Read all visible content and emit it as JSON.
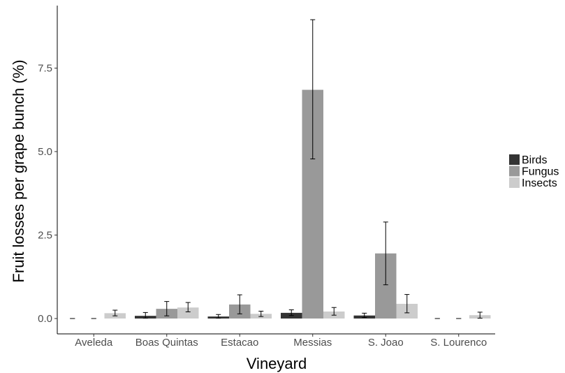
{
  "chart_data": {
    "type": "bar",
    "xlabel": "Vineyard",
    "ylabel": "Fruit losses per grape bunch (%)",
    "categories": [
      "Aveleda",
      "Boas Quintas",
      "Estacao",
      "Messias",
      "S. Joao",
      "S. Lourenco"
    ],
    "ylim": [
      -0.4,
      9.3
    ],
    "yticks": [
      0.0,
      2.5,
      5.0,
      7.5
    ],
    "ytick_labels": [
      "0.0",
      "2.5",
      "5.0",
      "7.5"
    ],
    "grid": false,
    "legend_position": "right",
    "series": [
      {
        "name": "Birds",
        "color": "#333333",
        "values": [
          0.0,
          0.08,
          0.06,
          0.17,
          0.09,
          0.0
        ],
        "err_low": [
          0.0,
          0.01,
          0.01,
          0.09,
          0.03,
          0.0
        ],
        "err_high": [
          0.0,
          0.18,
          0.12,
          0.26,
          0.16,
          0.0
        ]
      },
      {
        "name": "Fungus",
        "color": "#999999",
        "values": [
          0.0,
          0.29,
          0.42,
          6.85,
          1.95,
          0.0
        ],
        "err_low": [
          0.0,
          0.08,
          0.14,
          4.78,
          1.01,
          0.0
        ],
        "err_high": [
          0.0,
          0.51,
          0.71,
          8.95,
          2.89,
          0.0
        ]
      },
      {
        "name": "Insects",
        "color": "#cccccc",
        "values": [
          0.16,
          0.33,
          0.14,
          0.21,
          0.44,
          0.1
        ],
        "err_low": [
          0.08,
          0.2,
          0.06,
          0.1,
          0.17,
          0.01
        ],
        "err_high": [
          0.25,
          0.48,
          0.22,
          0.33,
          0.72,
          0.19
        ]
      }
    ]
  }
}
